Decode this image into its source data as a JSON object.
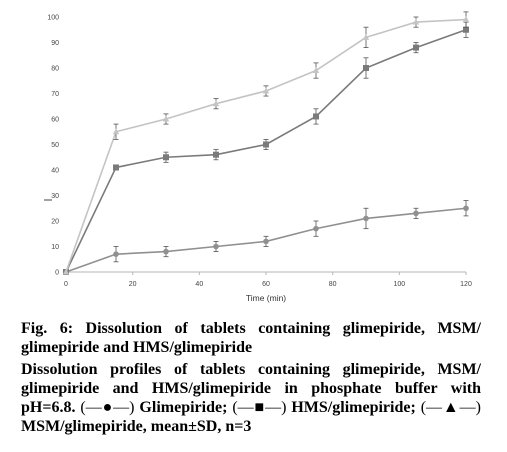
{
  "chart_data": {
    "type": "line",
    "x": [
      0,
      15,
      30,
      45,
      60,
      75,
      90,
      105,
      120
    ],
    "xlabel": "Time (min)",
    "ylabel": "",
    "xlim": [
      0,
      120
    ],
    "ylim": [
      0,
      100
    ],
    "x_ticks": [
      0,
      20,
      40,
      60,
      80,
      100,
      120
    ],
    "y_ticks": [
      0,
      10,
      20,
      30,
      40,
      50,
      60,
      70,
      80,
      90,
      100
    ],
    "grid": false,
    "series": [
      {
        "name": "Glimepiride",
        "color": "#909090",
        "marker": "circle",
        "values": [
          0,
          7,
          8,
          10,
          12,
          17,
          21,
          23,
          25
        ],
        "errors": [
          0,
          3,
          2,
          2,
          2,
          3,
          4,
          2,
          3
        ]
      },
      {
        "name": "HMS/glimepiride",
        "color": "#7a7a7a",
        "marker": "square",
        "values": [
          0,
          41,
          45,
          46,
          50,
          61,
          80,
          88,
          95
        ],
        "errors": [
          0,
          1,
          2,
          2,
          2,
          3,
          4,
          2,
          3
        ]
      },
      {
        "name": "MSM/glimepiride",
        "color": "#c4c4c4",
        "marker": "triangle",
        "values": [
          0,
          55,
          60,
          66,
          71,
          79,
          92,
          98,
          99
        ],
        "errors": [
          0,
          3,
          2,
          2,
          2,
          3,
          4,
          2,
          3
        ]
      }
    ]
  },
  "caption": {
    "title": "Fig. 6: Dissolution of tablets containing glimepiride, MSM/ glimepiride and HMS/glimepiride",
    "body_main": "Dissolution profiles of tablets containing glimepiride, MSM/ glimepiride and HMS/glimepiride in phosphate buffer with pH=6.8.",
    "legend_glim_symbol": "(—●—)",
    "legend_glim_label": "Glimepiride;",
    "legend_hms_symbol": "(—■—)",
    "legend_hms_label": "HMS/glimepiride;",
    "legend_msm_symbol": "(—▲—)",
    "legend_msm_label": "MSM/glimepiride, mean±SD, n=3"
  }
}
